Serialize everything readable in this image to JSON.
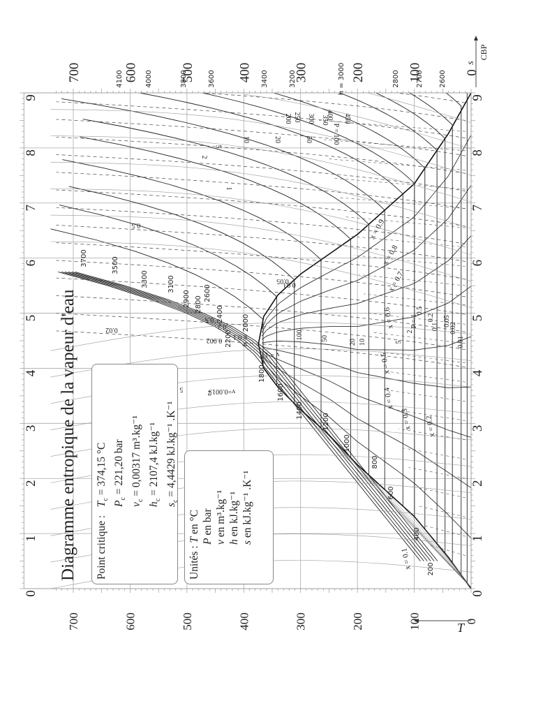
{
  "title": "Diagramme entropique de la vapeur d'eau",
  "critical_point": {
    "label": "Point critique :",
    "lines": [
      {
        "sym": "T",
        "sub": "c",
        "value": "= 374,15 °C"
      },
      {
        "sym": "P",
        "sub": "c",
        "value": "= 221,20  bar"
      },
      {
        "sym": "v",
        "sub": "c",
        "value": "= 0,00317  m³.kg⁻¹"
      },
      {
        "sym": "h",
        "sub": "c",
        "value": "= 2107,4  kJ.kg⁻¹"
      },
      {
        "sym": "s",
        "sub": "c",
        "value": "= 4,4429  kJ.kg⁻¹ .K⁻¹"
      }
    ]
  },
  "units": {
    "label": "Unités :",
    "lines": [
      {
        "sym": "T",
        "value": "en °C"
      },
      {
        "sym": "P",
        "value": "en bar"
      },
      {
        "sym": "v",
        "value": "en m³.kg⁻¹"
      },
      {
        "sym": "h",
        "value": "en kJ.kg⁻¹"
      },
      {
        "sym": "s",
        "value": "en kJ.kg⁻¹ .K⁻¹"
      }
    ]
  },
  "axis_labels": {
    "T": "T",
    "s": "s",
    "corner": "CBP"
  },
  "chart_data": {
    "type": "line",
    "title": "Diagramme entropique de la vapeur d'eau",
    "orientation": "rotated 90° clockwise (T axis horizontal, increasing leftward; s axis vertical, increasing upward)",
    "xlabel": "s (kJ.kg-1.K-1)",
    "ylabel": "T (°C)",
    "xlim": [
      0,
      9
    ],
    "ylim": [
      0,
      750
    ],
    "grid": true,
    "s_ticks": [
      0,
      1,
      2,
      3,
      4,
      5,
      6,
      7,
      8,
      9
    ],
    "T_ticks": [
      0,
      100,
      200,
      300,
      400,
      500,
      600,
      700
    ],
    "top_T_ticks": [
      0,
      100,
      200,
      300,
      400,
      500,
      600,
      700
    ],
    "top_h_labels": [
      "2600",
      "2700",
      "2800",
      "h = 3000",
      "3200",
      "3400",
      "3600",
      "3800",
      "4000",
      "4100"
    ],
    "critical_point": {
      "T": 374.15,
      "P": 221.2,
      "v": 0.00317,
      "h": 2107.4,
      "s": 4.4429
    },
    "saturation_dome": {
      "liquid": {
        "s": [
          0.0,
          0.57,
          1.31,
          2.25,
          2.79,
          3.25,
          3.66,
          4.0,
          4.44
        ],
        "T": [
          0,
          40,
          100,
          200,
          250,
          300,
          340,
          365,
          374.15
        ]
      },
      "vapour": {
        "s": [
          9.15,
          8.26,
          7.35,
          6.43,
          6.07,
          5.71,
          5.33,
          4.94,
          4.44
        ],
        "T": [
          0,
          40,
          100,
          200,
          250,
          300,
          340,
          365,
          374.15
        ]
      }
    },
    "quality_lines": [
      "x = 0.1",
      "x = 0.2",
      "x = 0.3",
      "x = 0.4",
      "x = 0.5",
      "x = 0.6",
      "x = 0.7",
      "x = 0.8",
      "x = 0.9"
    ],
    "isobars_bar": [
      "0.01",
      "0.02",
      "0.05",
      "0.1",
      "0.2",
      "0.5",
      "P = 1",
      "2",
      "5",
      "10",
      "20",
      "50",
      "P = 100",
      "125",
      "150",
      "175",
      "200",
      "250",
      "300",
      "350",
      "400",
      "450",
      "500"
    ],
    "isochores_m3kg": [
      "v = 0.0015",
      "0.002",
      "0.003",
      "0.005",
      "0.01",
      "0.02",
      "0.05",
      "0.1",
      "0.2",
      "0.5",
      "v = 1",
      "2",
      "5",
      "10",
      "20",
      "50",
      "100"
    ],
    "isenthalps_kJkg": [
      "200",
      "400",
      "600",
      "800",
      "1000",
      "1200",
      "1400",
      "1600",
      "1800",
      "h = 2000",
      "2200",
      "2400",
      "2600",
      "2800",
      "2900",
      "3100",
      "3300",
      "3500",
      "3700"
    ]
  }
}
